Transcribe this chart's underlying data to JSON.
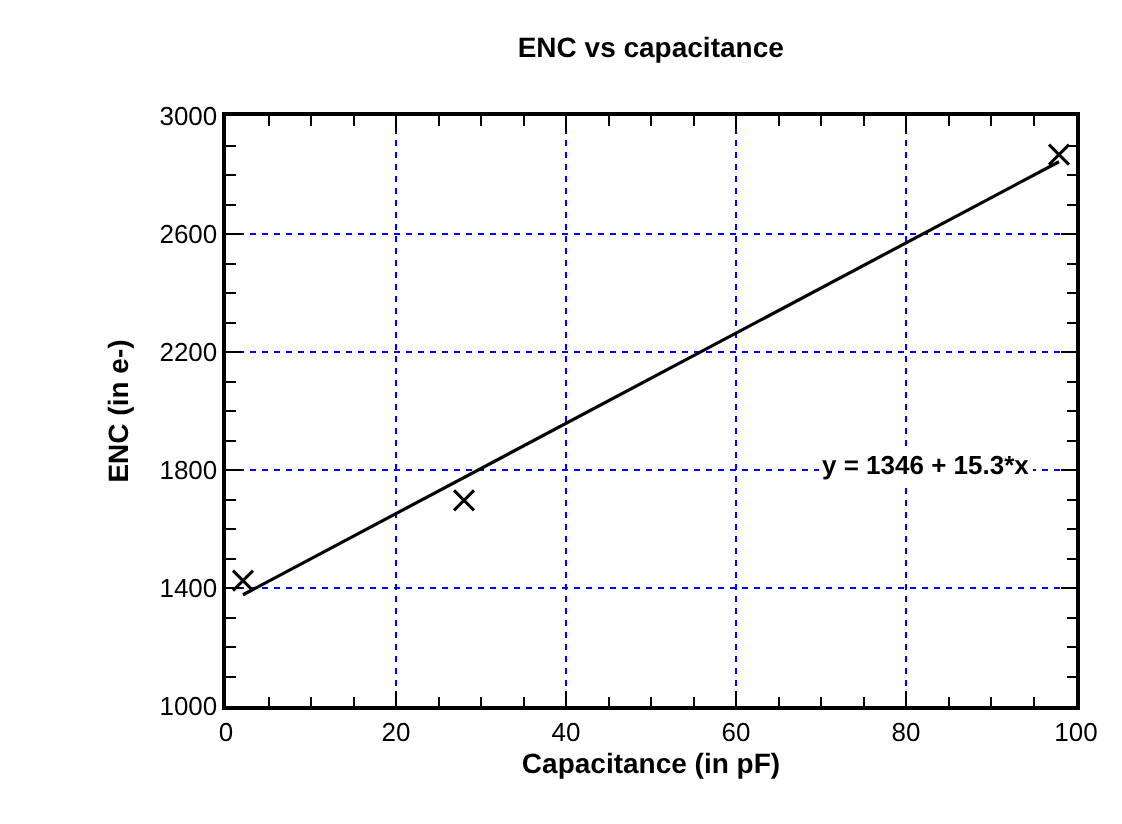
{
  "chart_data": {
    "type": "scatter",
    "title": "ENC vs capacitance",
    "xlabel": "Capacitance (in pF)",
    "ylabel": "ENC (in e-)",
    "series": [
      {
        "color": "#000000",
        "marker": "cross",
        "x": [
          2,
          28,
          98
        ],
        "values": [
          1425,
          1697,
          2869
        ]
      },
      {
        "type": "line",
        "color": "#000000",
        "marker": "none",
        "x": [
          2,
          98
        ],
        "values": [
          1377,
          2845
        ]
      }
    ],
    "annotations": [
      "y = 1346 + 15.3*x"
    ],
    "xlim": [
      0,
      100
    ],
    "ylim": [
      1000,
      3000
    ],
    "xticks": [
      0,
      {
        "value": 5,
        "label": null
      },
      {
        "value": 10,
        "label": null
      },
      {
        "value": 15,
        "label": null
      },
      20,
      {
        "value": 25,
        "label": null
      },
      {
        "value": 30,
        "label": null
      },
      {
        "value": 35,
        "label": null
      },
      40,
      {
        "value": 45,
        "label": null
      },
      {
        "value": 50,
        "label": null
      },
      {
        "value": 55,
        "label": null
      },
      60,
      {
        "value": 65,
        "label": null
      },
      {
        "value": 70,
        "label": null
      },
      {
        "value": 75,
        "label": null
      },
      80,
      {
        "value": 85,
        "label": null
      },
      {
        "value": 90,
        "label": null
      },
      {
        "value": 95,
        "label": null
      },
      100
    ],
    "yticks": [
      1000,
      {
        "value": 1100,
        "label": null
      },
      {
        "value": 1200,
        "label": null
      },
      {
        "value": 1300,
        "label": null
      },
      1400,
      {
        "value": 1500,
        "label": null
      },
      {
        "value": 1600,
        "label": null
      },
      {
        "value": 1700,
        "label": null
      },
      1800,
      {
        "value": 1900,
        "label": null
      },
      {
        "value": 2000,
        "label": null
      },
      {
        "value": 2100,
        "label": null
      },
      2200,
      {
        "value": 2300,
        "label": null
      },
      {
        "value": 2400,
        "label": null
      },
      {
        "value": 2500,
        "label": null
      },
      2600,
      {
        "value": 2700,
        "label": null
      },
      {
        "value": 2800,
        "label": null
      },
      {
        "value": 2900,
        "label": null
      },
      3000
    ],
    "grid": true
  }
}
